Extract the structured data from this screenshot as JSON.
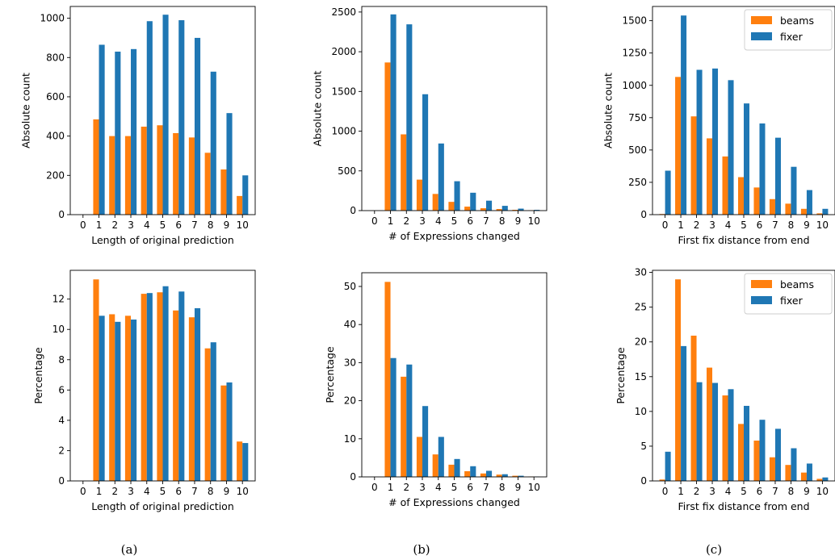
{
  "series_colors": {
    "beams": "#ff7f0e",
    "fixer": "#1f77b4"
  },
  "captions": [
    "(a)",
    "(b)",
    "(c)"
  ],
  "chart_data": [
    {
      "id": "a-count",
      "type": "bar",
      "categories": [
        "0",
        "1",
        "2",
        "3",
        "4",
        "5",
        "6",
        "7",
        "8",
        "9",
        "10"
      ],
      "xlabel": "Length of original prediction",
      "ylabel": "Absolute count",
      "ylim": [
        0,
        1060
      ],
      "yticks": [
        0,
        200,
        400,
        600,
        800,
        1000
      ],
      "legend": null,
      "series": [
        {
          "name": "beams",
          "values": [
            0,
            485,
            400,
            400,
            448,
            455,
            415,
            393,
            315,
            230,
            95
          ]
        },
        {
          "name": "fixer",
          "values": [
            0,
            865,
            830,
            843,
            985,
            1018,
            990,
            900,
            728,
            517,
            200
          ]
        }
      ]
    },
    {
      "id": "b-count",
      "type": "bar",
      "categories": [
        "0",
        "1",
        "2",
        "3",
        "4",
        "5",
        "6",
        "7",
        "8",
        "9",
        "10"
      ],
      "xlabel": "# of Expressions changed",
      "ylabel": "Absolute count",
      "ylim": [
        0,
        2570
      ],
      "yticks": [
        0,
        500,
        1000,
        1500,
        2000,
        2500
      ],
      "legend": null,
      "series": [
        {
          "name": "beams",
          "values": [
            0,
            1865,
            960,
            390,
            210,
            110,
            50,
            30,
            20,
            10,
            5
          ]
        },
        {
          "name": "fixer",
          "values": [
            0,
            2470,
            2345,
            1465,
            845,
            370,
            225,
            125,
            60,
            25,
            10
          ]
        }
      ]
    },
    {
      "id": "c-count",
      "type": "bar",
      "categories": [
        "0",
        "1",
        "2",
        "3",
        "4",
        "5",
        "6",
        "7",
        "8",
        "9",
        "10"
      ],
      "xlabel": "First fix distance from end",
      "ylabel": "Absolute count",
      "ylim": [
        0,
        1610
      ],
      "yticks": [
        0,
        250,
        500,
        750,
        1000,
        1250,
        1500
      ],
      "legend": "top-right",
      "series": [
        {
          "name": "beams",
          "values": [
            5,
            1065,
            760,
            590,
            450,
            290,
            210,
            120,
            85,
            45,
            10
          ]
        },
        {
          "name": "fixer",
          "values": [
            340,
            1540,
            1120,
            1130,
            1040,
            860,
            705,
            595,
            370,
            190,
            45
          ]
        }
      ]
    },
    {
      "id": "a-pct",
      "type": "bar",
      "categories": [
        "0",
        "1",
        "2",
        "3",
        "4",
        "5",
        "6",
        "7",
        "8",
        "9",
        "10"
      ],
      "xlabel": "Length of original prediction",
      "ylabel": "Percentage",
      "ylim": [
        0,
        13.9
      ],
      "yticks": [
        0,
        2,
        4,
        6,
        8,
        10,
        12
      ],
      "legend": null,
      "series": [
        {
          "name": "beams",
          "values": [
            0,
            13.3,
            11.0,
            10.9,
            12.35,
            12.45,
            11.25,
            10.8,
            8.75,
            6.3,
            2.6
          ]
        },
        {
          "name": "fixer",
          "values": [
            0,
            10.9,
            10.5,
            10.65,
            12.4,
            12.85,
            12.5,
            11.4,
            9.15,
            6.5,
            2.5
          ]
        }
      ]
    },
    {
      "id": "b-pct",
      "type": "bar",
      "categories": [
        "0",
        "1",
        "2",
        "3",
        "4",
        "5",
        "6",
        "7",
        "8",
        "9",
        "10"
      ],
      "xlabel": "# of Expressions changed",
      "ylabel": "Percentage",
      "ylim": [
        0,
        53.6
      ],
      "yticks": [
        0,
        10,
        20,
        30,
        40,
        50
      ],
      "legend": null,
      "series": [
        {
          "name": "beams",
          "values": [
            0,
            51.2,
            26.3,
            10.5,
            5.9,
            3.2,
            1.5,
            0.9,
            0.6,
            0.3,
            0.1
          ]
        },
        {
          "name": "fixer",
          "values": [
            0,
            31.2,
            29.5,
            18.6,
            10.5,
            4.7,
            2.8,
            1.6,
            0.7,
            0.3,
            0.1
          ]
        }
      ]
    },
    {
      "id": "c-pct",
      "type": "bar",
      "categories": [
        "0",
        "1",
        "2",
        "3",
        "4",
        "5",
        "6",
        "7",
        "8",
        "9",
        "10"
      ],
      "xlabel": "First fix distance from end",
      "ylabel": "Percentage",
      "ylim": [
        0,
        30.3
      ],
      "yticks": [
        0,
        5,
        10,
        15,
        20,
        25,
        30
      ],
      "legend": "top-right",
      "series": [
        {
          "name": "beams",
          "values": [
            0.2,
            29.0,
            20.9,
            16.3,
            12.3,
            8.2,
            5.8,
            3.4,
            2.3,
            1.2,
            0.3
          ]
        },
        {
          "name": "fixer",
          "values": [
            4.2,
            19.4,
            14.2,
            14.1,
            13.2,
            10.8,
            8.8,
            7.5,
            4.7,
            2.5,
            0.5
          ]
        }
      ]
    }
  ]
}
